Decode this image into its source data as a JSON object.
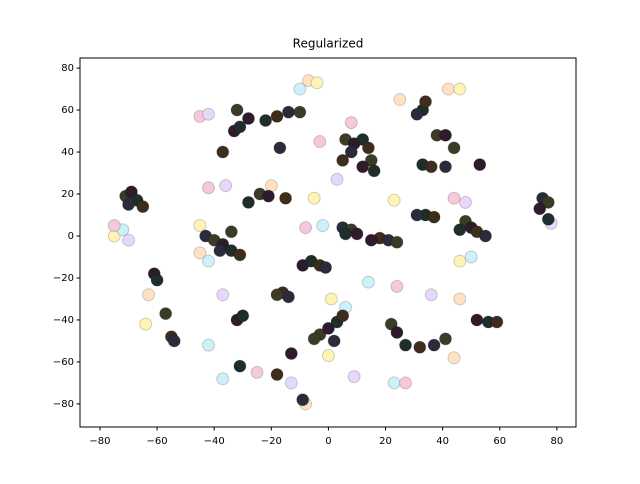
{
  "chart_data": {
    "type": "scatter",
    "title": "Regularized",
    "x": [
      -75,
      -72,
      -75,
      -70,
      -45,
      -45,
      -42,
      -45,
      -42,
      -7,
      -4,
      -10,
      -42,
      -36,
      -20,
      -5,
      -2,
      -8,
      -37,
      -63,
      -64,
      -42,
      -25,
      -13,
      -8,
      1,
      6,
      8,
      3,
      25,
      23,
      14,
      24,
      36,
      46,
      46,
      50,
      44,
      48,
      42,
      46,
      23,
      27,
      9,
      44,
      0,
      -37,
      -3,
      78,
      -71,
      -69,
      -67,
      -65,
      -70,
      -32,
      -28,
      -22,
      -18,
      -14,
      -10,
      -33,
      -31,
      -37,
      -17,
      -24,
      -21,
      -28,
      -15,
      -43,
      -40,
      -37,
      -34,
      -31,
      -38,
      -34,
      -61,
      -60,
      -55,
      -54,
      -57,
      -32,
      -30,
      -16,
      -14,
      -18,
      -9,
      -6,
      -3,
      -1,
      -3,
      0,
      3,
      5,
      2,
      -5,
      -13,
      -31,
      -18,
      -9,
      6,
      9,
      12,
      14,
      8,
      15,
      12,
      16,
      5,
      5,
      8,
      10,
      6,
      18,
      21,
      24,
      15,
      33,
      34,
      31,
      38,
      41,
      33,
      36,
      41,
      44,
      53,
      34,
      37,
      31,
      48,
      50,
      46,
      52,
      55,
      22,
      24,
      27,
      32,
      37,
      41,
      52,
      56,
      59,
      75,
      77,
      74,
      77
    ],
    "y": [
      0,
      3,
      5,
      -2,
      -8,
      5,
      -12,
      57,
      58,
      74,
      73,
      70,
      23,
      24,
      24,
      18,
      5,
      4,
      -28,
      -28,
      -42,
      -52,
      -65,
      -70,
      -80,
      -30,
      -34,
      54,
      27,
      65,
      17,
      -22,
      -24,
      -28,
      -30,
      -12,
      -10,
      18,
      16,
      70,
      70,
      -70,
      -70,
      -67,
      -58,
      -57,
      -68,
      45,
      6,
      19,
      21,
      17,
      14,
      15,
      60,
      56,
      55,
      57,
      59,
      59,
      50,
      52,
      40,
      42,
      20,
      19,
      16,
      18,
      0,
      -2,
      -4,
      -7,
      -9,
      -7,
      2,
      -18,
      -21,
      -48,
      -50,
      -37,
      -40,
      -38,
      -27,
      -29,
      -28,
      -14,
      -12,
      -14,
      -15,
      -47,
      -44,
      -41,
      -38,
      -50,
      -49,
      -56,
      -62,
      -66,
      -78,
      46,
      44,
      46,
      42,
      40,
      36,
      33,
      31,
      36,
      4,
      3,
      1,
      1,
      -1,
      -2,
      -3,
      -2,
      60,
      64,
      58,
      48,
      48,
      34,
      33,
      33,
      42,
      34,
      10,
      9,
      10,
      7,
      4,
      3,
      2,
      0,
      -42,
      -46,
      -52,
      -53,
      -52,
      -49,
      -40,
      -41,
      -41,
      18,
      16,
      13,
      8
    ],
    "colors": [
      "#fff4b3",
      "#cdf0fa",
      "#f6c8dc",
      "#e6d8fa",
      "#ffe2c4",
      "#fff4b3",
      "#cdf0fa",
      "#f6c8dc",
      "#e6d8fa",
      "#ffe2c4",
      "#fff4b3",
      "#cdf0fa",
      "#f6c8dc",
      "#e6d8fa",
      "#ffe2c4",
      "#fff4b3",
      "#cdf0fa",
      "#f6c8dc",
      "#e6d8fa",
      "#ffe2c4",
      "#fff4b3",
      "#cdf0fa",
      "#f6c8dc",
      "#e6d8fa",
      "#ffe2c4",
      "#fff4b3",
      "#cdf0fa",
      "#f6c8dc",
      "#e6d8fa",
      "#ffe2c4",
      "#fff4b3",
      "#cdf0fa",
      "#f6c8dc",
      "#e6d8fa",
      "#ffe2c4",
      "#fff4b3",
      "#cdf0fa",
      "#f6c8dc",
      "#e6d8fa",
      "#ffe2c4",
      "#fff4b3",
      "#cdf0fa",
      "#f6c8dc",
      "#e6d8fa",
      "#ffe2c4",
      "#fff4b3",
      "#cdf0fa",
      "#f6c8dc",
      "#e6d8fa",
      "#3b3b28",
      "#2e1c2c",
      "#1f2e2a",
      "#3e2c1c",
      "#2a2c3c",
      "#3b3b28",
      "#2e1c2c",
      "#1f2e2a",
      "#3e2c1c",
      "#2a2c3c",
      "#3b3b28",
      "#2e1c2c",
      "#1f2e2a",
      "#3e2c1c",
      "#2a2c3c",
      "#3b3b28",
      "#2e1c2c",
      "#1f2e2a",
      "#3e2c1c",
      "#2a2c3c",
      "#3b3b28",
      "#2e1c2c",
      "#1f2e2a",
      "#3e2c1c",
      "#2a2c3c",
      "#3b3b28",
      "#2e1c2c",
      "#1f2e2a",
      "#3e2c1c",
      "#2a2c3c",
      "#3b3b28",
      "#2e1c2c",
      "#1f2e2a",
      "#3e2c1c",
      "#2a2c3c",
      "#3b3b28",
      "#2e1c2c",
      "#1f2e2a",
      "#3e2c1c",
      "#2a2c3c",
      "#3b3b28",
      "#2e1c2c",
      "#1f2e2a",
      "#3e2c1c",
      "#2a2c3c",
      "#3b3b28",
      "#2e1c2c",
      "#1f2e2a",
      "#3e2c1c",
      "#2a2c3c",
      "#3b3b28",
      "#2e1c2c",
      "#1f2e2a",
      "#3e2c1c",
      "#2a2c3c",
      "#3b3b28",
      "#2e1c2c",
      "#1f2e2a",
      "#3e2c1c",
      "#2a2c3c",
      "#3b3b28",
      "#2e1c2c",
      "#1f2e2a",
      "#3e2c1c",
      "#2a2c3c",
      "#3b3b28",
      "#2e1c2c",
      "#1f2e2a",
      "#3e2c1c",
      "#2a2c3c",
      "#3b3b28",
      "#2e1c2c",
      "#1f2e2a",
      "#3e2c1c",
      "#2a2c3c",
      "#3b3b28",
      "#2e1c2c",
      "#1f2e2a",
      "#3e2c1c",
      "#2a2c3c",
      "#3b3b28",
      "#2e1c2c",
      "#1f2e2a",
      "#3e2c1c",
      "#2a2c3c",
      "#3b3b28",
      "#2e1c2c",
      "#1f2e2a",
      "#3e2c1c",
      "#2a2c3c",
      "#3b3b28",
      "#2e1c2c",
      "#1f2e2a",
      "#3e2c1c",
      "#2a2c3c",
      "#3b3b28",
      "#2e1c2c",
      "#1f2e2a"
    ],
    "xlim": [
      -87,
      86.7
    ],
    "ylim": [
      -91,
      84.8
    ],
    "xticks": [
      {
        "value": -80,
        "label": "−80"
      },
      {
        "value": -60,
        "label": "−60"
      },
      {
        "value": -40,
        "label": "−40"
      },
      {
        "value": -20,
        "label": "−20"
      },
      0,
      20,
      40,
      60,
      80
    ],
    "yticks": [
      {
        "value": -80,
        "label": "−80"
      },
      {
        "value": -60,
        "label": "−60"
      },
      {
        "value": -40,
        "label": "−40"
      },
      {
        "value": -20,
        "label": "−20"
      },
      0,
      20,
      40,
      60,
      80
    ]
  }
}
